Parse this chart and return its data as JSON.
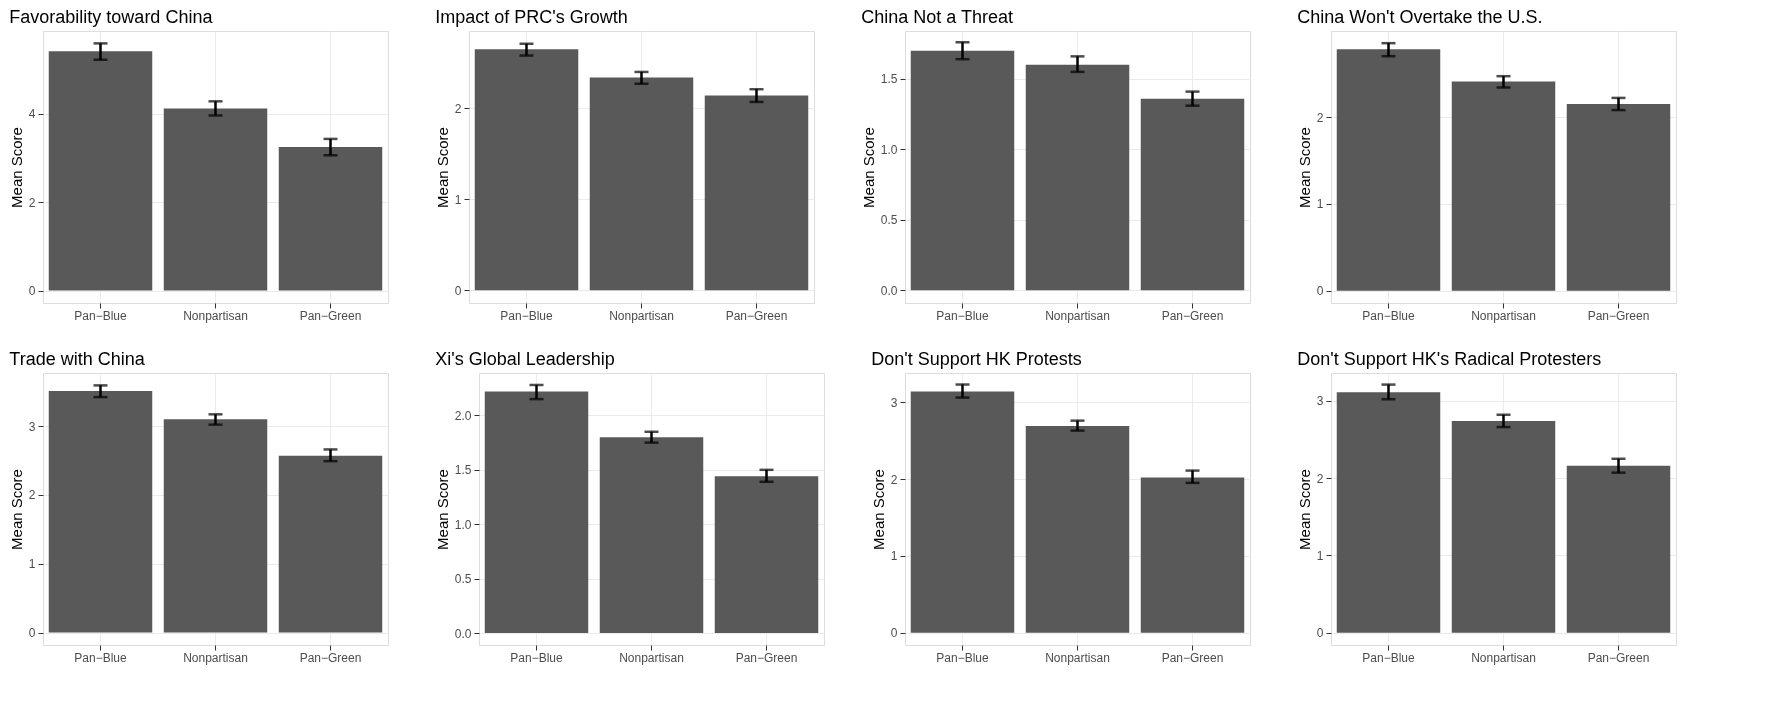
{
  "chart_data": [
    {
      "type": "bar",
      "title": "Favorability toward China",
      "ylabel": "Mean Score",
      "categories": [
        "Pan−Blue",
        "Nonpartisan",
        "Pan−Green"
      ],
      "values": [
        5.41,
        4.12,
        3.25
      ],
      "errors": [
        [
          5.22,
          5.59
        ],
        [
          3.96,
          4.28
        ],
        [
          3.06,
          3.43
        ]
      ],
      "color": "#595959",
      "ylim": [
        -0.28,
        5.87
      ],
      "yticks": [
        0,
        2,
        4
      ],
      "grid": true
    },
    {
      "type": "bar",
      "title": "Impact of PRC's Growth",
      "ylabel": "Mean Score",
      "categories": [
        "Pan−Blue",
        "Nonpartisan",
        "Pan−Green"
      ],
      "values": [
        2.65,
        2.34,
        2.14
      ],
      "errors": [
        [
          2.58,
          2.71
        ],
        [
          2.27,
          2.4
        ],
        [
          2.07,
          2.21
        ]
      ],
      "color": "#595959",
      "ylim": [
        -0.14,
        2.85
      ],
      "yticks": [
        0,
        1,
        2
      ],
      "grid": true
    },
    {
      "type": "bar",
      "title": "China Not a Threat",
      "ylabel": "Mean Score",
      "categories": [
        "Pan−Blue",
        "Nonpartisan",
        "Pan−Green"
      ],
      "values": [
        1.7,
        1.6,
        1.36
      ],
      "errors": [
        [
          1.64,
          1.76
        ],
        [
          1.55,
          1.66
        ],
        [
          1.31,
          1.41
        ]
      ],
      "color": "#595959",
      "ylim": [
        -0.09,
        1.84
      ],
      "yticks": [
        {
          "value": 0,
          "label": "0.0"
        },
        0.5,
        {
          "value": 1,
          "label": "1.0"
        },
        1.5
      ],
      "grid": true
    },
    {
      "type": "bar",
      "title": "China Won't Overtake the U.S.",
      "ylabel": "Mean Score",
      "categories": [
        "Pan−Blue",
        "Nonpartisan",
        "Pan−Green"
      ],
      "values": [
        2.78,
        2.41,
        2.15
      ],
      "errors": [
        [
          2.7,
          2.85
        ],
        [
          2.34,
          2.47
        ],
        [
          2.08,
          2.22
        ]
      ],
      "color": "#595959",
      "ylim": [
        -0.14,
        2.99
      ],
      "yticks": [
        0,
        1,
        2
      ],
      "grid": true
    },
    {
      "type": "bar",
      "title": "Trade with China",
      "ylabel": "Mean Score",
      "categories": [
        "Pan−Blue",
        "Nonpartisan",
        "Pan−Green"
      ],
      "values": [
        3.51,
        3.1,
        2.57
      ],
      "errors": [
        [
          3.42,
          3.59
        ],
        [
          3.02,
          3.17
        ],
        [
          2.49,
          2.66
        ]
      ],
      "color": "#595959",
      "ylim": [
        -0.18,
        3.77
      ],
      "yticks": [
        0,
        1,
        2,
        3
      ],
      "grid": true
    },
    {
      "type": "bar",
      "title": "Xi's Global Leadership",
      "ylabel": "Mean Score",
      "categories": [
        "Pan−Blue",
        "Nonpartisan",
        "Pan−Green"
      ],
      "values": [
        2.22,
        1.8,
        1.44
      ],
      "errors": [
        [
          2.15,
          2.28
        ],
        [
          1.75,
          1.85
        ],
        [
          1.39,
          1.5
        ]
      ],
      "color": "#595959",
      "ylim": [
        -0.11,
        2.39
      ],
      "yticks": [
        {
          "value": 0,
          "label": "0.0"
        },
        0.5,
        {
          "value": 1,
          "label": "1.0"
        },
        1.5,
        {
          "value": 2,
          "label": "2.0"
        }
      ],
      "grid": true
    },
    {
      "type": "bar",
      "title": "Don't Support HK Protests",
      "ylabel": "Mean Score",
      "categories": [
        "Pan−Blue",
        "Nonpartisan",
        "Pan−Green"
      ],
      "values": [
        3.14,
        2.69,
        2.02
      ],
      "errors": [
        [
          3.06,
          3.23
        ],
        [
          2.63,
          2.76
        ],
        [
          1.95,
          2.11
        ]
      ],
      "color": "#595959",
      "ylim": [
        -0.16,
        3.38
      ],
      "yticks": [
        0,
        1,
        2,
        3
      ],
      "grid": true
    },
    {
      "type": "bar",
      "title": "Don't Support HK's Radical Protesters",
      "ylabel": "Mean Score",
      "categories": [
        "Pan−Blue",
        "Nonpartisan",
        "Pan−Green"
      ],
      "values": [
        3.11,
        2.74,
        2.16
      ],
      "errors": [
        [
          3.02,
          3.21
        ],
        [
          2.66,
          2.82
        ],
        [
          2.07,
          2.25
        ]
      ],
      "color": "#595959",
      "ylim": [
        -0.16,
        3.36
      ],
      "yticks": [
        0,
        1,
        2,
        3
      ],
      "grid": true
    }
  ]
}
